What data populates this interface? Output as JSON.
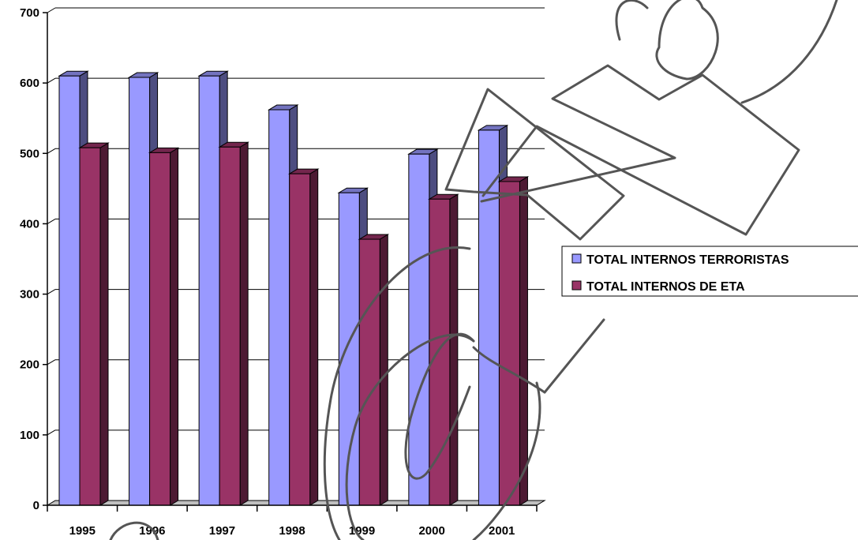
{
  "chart_data": {
    "type": "bar",
    "categories": [
      "1995",
      "1996",
      "1997",
      "1998",
      "1999",
      "2000",
      "2001"
    ],
    "series": [
      {
        "name": "TOTAL INTERNOS TERRORISTAS",
        "color": "#9999ff",
        "values": [
          610,
          608,
          610,
          562,
          444,
          499,
          533
        ]
      },
      {
        "name": "TOTAL INTERNOS DE ETA",
        "color": "#993366",
        "values": [
          508,
          501,
          509,
          471,
          378,
          435,
          460
        ]
      }
    ],
    "ylim": [
      0,
      700
    ],
    "yticks": [
      "0",
      "100",
      "200",
      "300",
      "400",
      "500",
      "600",
      "700"
    ],
    "grid": true,
    "style": "3d-clustered-columns",
    "legend_position": "right",
    "watermark": "stylized outline lettering",
    "title": "",
    "xlabel": "",
    "ylabel": ""
  }
}
